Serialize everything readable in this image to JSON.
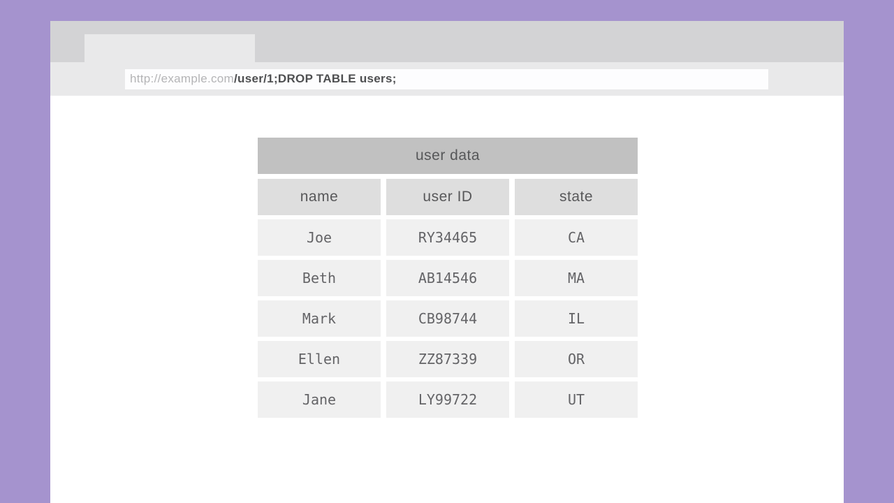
{
  "browser": {
    "url": {
      "base": "http://example.com",
      "path": "/user/1;DROP TABLE users;"
    }
  },
  "table": {
    "title": "user data",
    "columns": [
      "name",
      "user ID",
      "state"
    ],
    "rows": [
      [
        "Joe",
        "RY34465",
        "CA"
      ],
      [
        "Beth",
        "AB14546",
        "MA"
      ],
      [
        "Mark",
        "CB98744",
        "IL"
      ],
      [
        "Ellen",
        "ZZ87339",
        "OR"
      ],
      [
        "Jane",
        "LY99722",
        "UT"
      ]
    ]
  },
  "colors": {
    "background_purple": "#a593ce",
    "tab_strip_gray": "#d3d3d5",
    "tab_and_addressbar_gray": "#e9e9ea",
    "url_field_white": "#fdfdfe",
    "url_base_text": "#b4b4b6",
    "url_path_text": "#4e4f51",
    "table_title_bar": "#c1c1c1",
    "table_header_cell": "#dedede",
    "table_data_cell": "#f0f0f0",
    "table_text": "#58585a"
  }
}
